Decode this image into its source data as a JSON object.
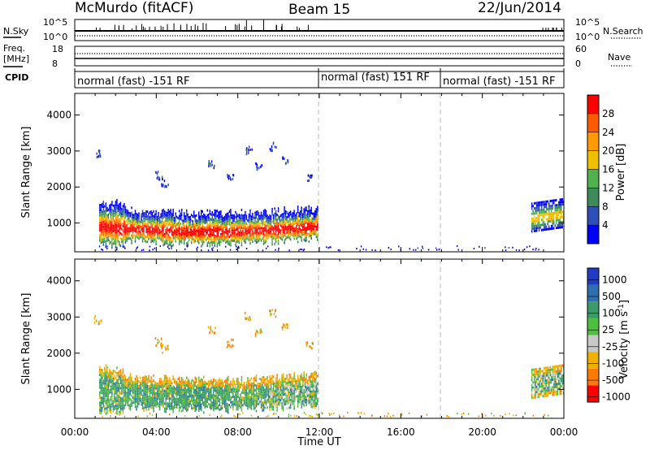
{
  "header": {
    "station": "McMurdo (fitACF)",
    "beam": "Beam 15",
    "date": "22/Jun/2014"
  },
  "strip": {
    "nsky_label": "N.Sky",
    "nsearch_label": "N.Search",
    "nsky_ticks": [
      "10^5",
      "10^0"
    ],
    "nsearch_ticks": [
      "10^5",
      "10^0"
    ],
    "freq_label": "Freq.",
    "freq_unit": "[MHz]",
    "freq_ticks": [
      "18",
      "8"
    ],
    "nave_label": "Nave",
    "nave_ticks": [
      "60",
      "0"
    ],
    "cpid_label": "CPID",
    "cpid_segments": [
      {
        "label": "normal (fast) -151 RF",
        "start_hour": 0
      },
      {
        "label": "normal (fast) 151 RF",
        "start_hour": 12
      },
      {
        "label": "normal (fast) -151 RF",
        "start_hour": 18
      }
    ]
  },
  "chart_data": [
    {
      "type": "heatmap",
      "name": "power",
      "xlabel": "",
      "ylabel": "Slant Range [km]",
      "xlim": [
        0,
        24
      ],
      "ylim": [
        200,
        4600
      ],
      "yticks": [
        1000,
        2000,
        3000,
        4000
      ],
      "ytick_labels": [
        "1000",
        "2000",
        "3000",
        "4000"
      ],
      "colorbar": {
        "label": "Power [dB]",
        "range": [
          0,
          32
        ],
        "tick_labels": [
          "4",
          "8",
          "12",
          "16",
          "20",
          "24",
          "28"
        ],
        "colors": [
          "#0000ff",
          "#2f4fb8",
          "#3f8a5a",
          "#4fb24f",
          "#f0c000",
          "#ff9a00",
          "#ff5a00",
          "#ff0000"
        ]
      },
      "echo_regions": [
        {
          "hours": [
            1.2,
            11.9
          ],
          "range_km": [
            700,
            1700
          ],
          "value": "4-32 dB"
        },
        {
          "hours": [
            22.4,
            24.0
          ],
          "range_km": [
            800,
            1800
          ],
          "value": "4-20 dB"
        }
      ]
    },
    {
      "type": "heatmap",
      "name": "velocity",
      "xlabel": "Time UT",
      "ylabel": "Slant Range [km]",
      "xlim": [
        0,
        24
      ],
      "ylim": [
        200,
        4600
      ],
      "xtick_labels": [
        "00:00",
        "04:00",
        "08:00",
        "12:00",
        "16:00",
        "20:00",
        "00:00"
      ],
      "yticks": [
        1000,
        2000,
        3000,
        4000
      ],
      "ytick_labels": [
        "1000",
        "2000",
        "3000",
        "4000"
      ],
      "colorbar": {
        "label": "Velocity [m s^-1]",
        "tick_labels": [
          "1000",
          "500",
          "100",
          "25",
          "-25",
          "-100",
          "-500",
          "-1000"
        ],
        "colors": [
          "#1e3cc8",
          "#2f6fb0",
          "#3a9a6a",
          "#4fbf3f",
          "#c8c8c8",
          "#f0b000",
          "#ff7a00",
          "#ff0000"
        ]
      },
      "echo_regions": [
        {
          "hours": [
            1.2,
            11.9
          ],
          "range_km": [
            700,
            1700
          ],
          "value": "-100 to 100 m/s"
        },
        {
          "hours": [
            22.4,
            24.0
          ],
          "range_km": [
            800,
            1800
          ],
          "value": "-100 to 100 m/s"
        }
      ]
    }
  ]
}
